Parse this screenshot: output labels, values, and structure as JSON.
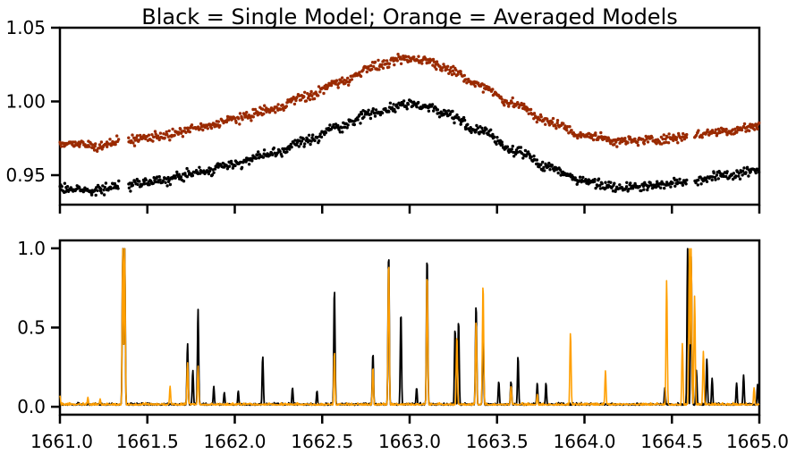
{
  "chart_data": [
    {
      "type": "scatter",
      "title": "Black = Single Model; Orange = Averaged Models",
      "xlim": [
        1661.0,
        1665.0
      ],
      "ylim": [
        0.93,
        1.05
      ],
      "y_ticks": [
        0.95,
        1.0,
        1.05
      ],
      "y_tick_labels": [
        "0.95",
        "1.00",
        "1.05"
      ],
      "x_ticks": [
        1661.0,
        1661.5,
        1662.0,
        1662.5,
        1663.0,
        1663.5,
        1664.0,
        1664.5,
        1665.0
      ],
      "x_tick_labels_visible": false,
      "grid": false,
      "series": [
        {
          "color": "#000000",
          "curve": {
            "x": [
              1661.0,
              1661.2,
              1661.4,
              1661.6,
              1661.8,
              1662.0,
              1662.2,
              1662.4,
              1662.6,
              1662.8,
              1663.0,
              1663.1,
              1663.2,
              1663.4,
              1663.6,
              1663.8,
              1664.0,
              1664.2,
              1664.4,
              1664.5,
              1664.6,
              1664.8,
              1665.0
            ],
            "y": [
              0.941,
              0.94,
              0.944,
              0.947,
              0.952,
              0.958,
              0.964,
              0.973,
              0.983,
              0.993,
              0.998,
              0.997,
              0.992,
              0.98,
              0.967,
              0.955,
              0.946,
              0.942,
              0.943,
              0.944,
              0.946,
              0.95,
              0.953
            ]
          }
        },
        {
          "color": "#9a2a00",
          "curve": {
            "x": [
              1661.0,
              1661.2,
              1661.4,
              1661.6,
              1661.8,
              1662.0,
              1662.2,
              1662.4,
              1662.6,
              1662.8,
              1663.0,
              1663.1,
              1663.2,
              1663.4,
              1663.6,
              1663.8,
              1664.0,
              1664.2,
              1664.4,
              1664.5,
              1664.6,
              1664.8,
              1665.0
            ],
            "y": [
              0.972,
              0.97,
              0.974,
              0.977,
              0.982,
              0.988,
              0.994,
              1.003,
              1.013,
              1.024,
              1.029,
              1.028,
              1.023,
              1.011,
              0.998,
              0.986,
              0.977,
              0.973,
              0.974,
              0.975,
              0.977,
              0.98,
              0.983
            ]
          }
        }
      ]
    },
    {
      "type": "line",
      "xlim": [
        1661.0,
        1665.0
      ],
      "ylim": [
        -0.05,
        1.05
      ],
      "y_ticks": [
        0.0,
        0.5,
        1.0
      ],
      "y_tick_labels": [
        "0.0",
        "0.5",
        "1.0"
      ],
      "x_ticks": [
        1661.0,
        1661.5,
        1662.0,
        1662.5,
        1663.0,
        1663.5,
        1664.0,
        1664.5,
        1665.0
      ],
      "x_tick_labels": [
        "1661.0",
        "1661.5",
        "1662.0",
        "1662.5",
        "1663.0",
        "1663.5",
        "1664.0",
        "1664.5",
        "1665.0"
      ],
      "grid": false,
      "baseline": 0.01,
      "series": [
        {
          "color": "#000000",
          "peaks": [
            [
              1661.36,
              1.0
            ],
            [
              1661.37,
              1.0
            ],
            [
              1661.73,
              0.4
            ],
            [
              1661.76,
              0.23
            ],
            [
              1661.79,
              0.62
            ],
            [
              1661.88,
              0.13
            ],
            [
              1661.94,
              0.09
            ],
            [
              1662.02,
              0.1
            ],
            [
              1662.16,
              0.32
            ],
            [
              1662.33,
              0.12
            ],
            [
              1662.47,
              0.1
            ],
            [
              1662.57,
              0.75
            ],
            [
              1662.79,
              0.34
            ],
            [
              1662.88,
              0.98
            ],
            [
              1662.95,
              0.6
            ],
            [
              1663.04,
              0.12
            ],
            [
              1663.1,
              0.96
            ],
            [
              1663.26,
              0.5
            ],
            [
              1663.28,
              0.55
            ],
            [
              1663.38,
              0.65
            ],
            [
              1663.42,
              0.5
            ],
            [
              1663.51,
              0.16
            ],
            [
              1663.58,
              0.16
            ],
            [
              1663.62,
              0.32
            ],
            [
              1663.73,
              0.15
            ],
            [
              1663.78,
              0.15
            ],
            [
              1664.46,
              0.12
            ],
            [
              1664.59,
              1.0
            ],
            [
              1664.61,
              0.95
            ],
            [
              1664.64,
              0.23
            ],
            [
              1664.7,
              0.3
            ],
            [
              1664.73,
              0.18
            ],
            [
              1664.87,
              0.15
            ],
            [
              1664.91,
              0.2
            ],
            [
              1664.99,
              0.14
            ]
          ]
        },
        {
          "color": "#ff9f00",
          "peaks": [
            [
              1661.0,
              0.07
            ],
            [
              1661.16,
              0.06
            ],
            [
              1661.23,
              0.05
            ],
            [
              1661.36,
              1.0
            ],
            [
              1661.37,
              1.0
            ],
            [
              1661.63,
              0.13
            ],
            [
              1661.73,
              0.28
            ],
            [
              1661.79,
              0.26
            ],
            [
              1662.57,
              0.35
            ],
            [
              1662.79,
              0.25
            ],
            [
              1662.88,
              0.93
            ],
            [
              1663.1,
              0.85
            ],
            [
              1663.27,
              0.45
            ],
            [
              1663.38,
              0.55
            ],
            [
              1663.42,
              0.78
            ],
            [
              1663.58,
              0.13
            ],
            [
              1663.73,
              0.08
            ],
            [
              1663.92,
              0.47
            ],
            [
              1664.12,
              0.23
            ],
            [
              1664.47,
              0.8
            ],
            [
              1664.56,
              0.4
            ],
            [
              1664.6,
              1.0
            ],
            [
              1664.61,
              1.0
            ],
            [
              1664.63,
              0.7
            ],
            [
              1664.68,
              0.35
            ],
            [
              1664.97,
              0.12
            ]
          ]
        }
      ]
    }
  ]
}
